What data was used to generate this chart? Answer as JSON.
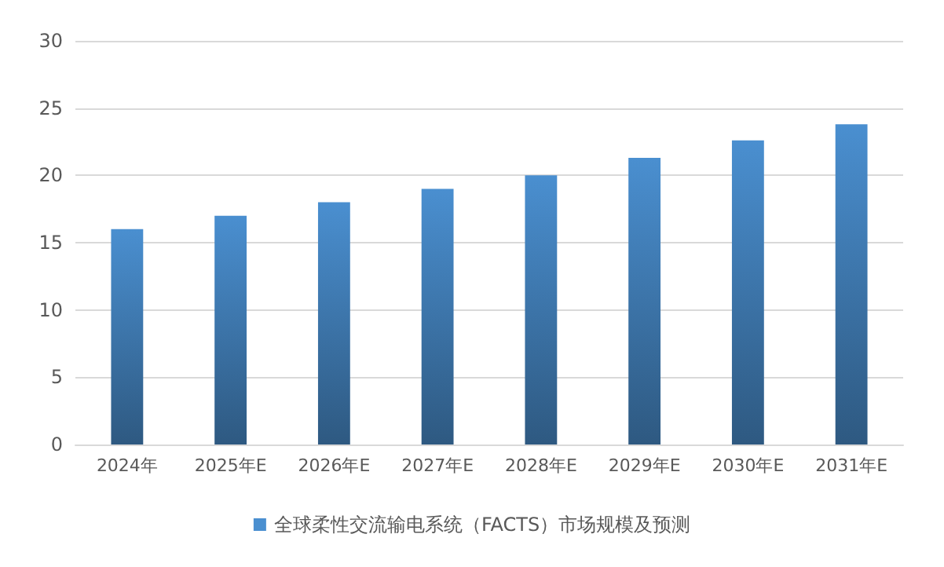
{
  "chart_data": {
    "type": "bar",
    "categories": [
      "2024年",
      "2025年E",
      "2026年E",
      "2027年E",
      "2028年E",
      "2029年E",
      "2030年E",
      "2031年E"
    ],
    "series": [
      {
        "name": "全球柔性交流输电系统（FACTS）市场规模及预测",
        "color": "#4a8fd0",
        "values": [
          16,
          17,
          18,
          19,
          20,
          21.3,
          22.6,
          23.8
        ]
      }
    ],
    "ylim": [
      0,
      30
    ],
    "yticks": [
      0,
      5,
      10,
      15,
      20,
      25,
      30
    ],
    "grid": "y",
    "legend": "bottom"
  }
}
